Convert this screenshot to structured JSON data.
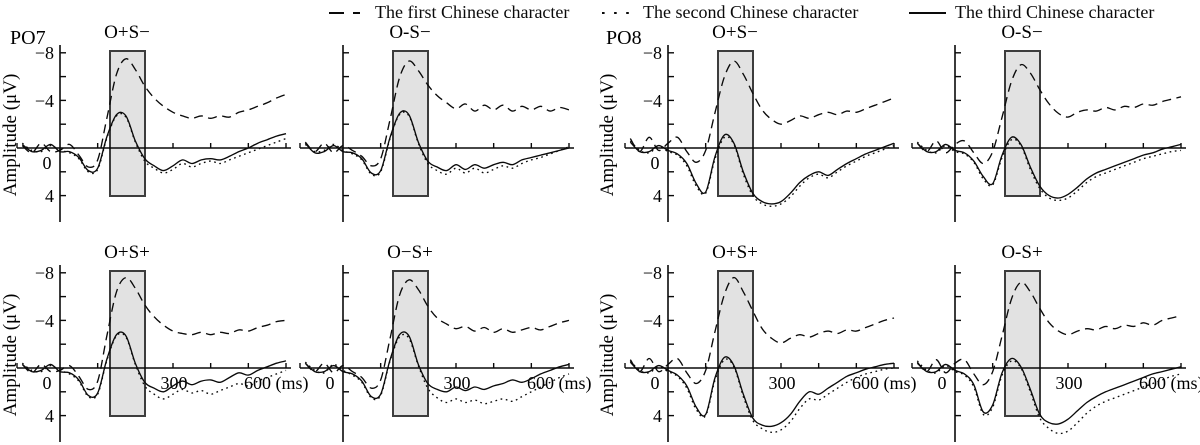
{
  "figure": {
    "electrodes": [
      "PO7",
      "PO8"
    ],
    "ylabel": "Amplitude (μV)",
    "legend": [
      {
        "label": "The first Chinese character",
        "style": "dashed"
      },
      {
        "label": "The second Chinese character",
        "style": "dotted"
      },
      {
        "label": "The third Chinese character",
        "style": "solid"
      }
    ],
    "colors": {
      "line": "#0a0a0a",
      "highlight_fill": "#e2e2e2",
      "highlight_border": "#3d3d3d",
      "background": "#ffffff"
    }
  },
  "chart_data": {
    "type": "line",
    "title": "",
    "xlabel": "(ms)",
    "ylabel": "Amplitude (μV)",
    "x_ms": [
      -100,
      -75,
      -50,
      -25,
      0,
      25,
      50,
      75,
      100,
      125,
      150,
      175,
      200,
      225,
      250,
      275,
      300,
      325,
      350,
      375,
      400,
      425,
      450,
      475,
      500,
      525,
      550,
      575,
      600
    ],
    "x_axis": {
      "range_ms": [
        -114,
        613
      ],
      "ticks_ms": [
        100,
        300,
        400,
        500,
        600
      ],
      "labeled_ticks": [
        "0",
        "300",
        "600 (ms)"
      ]
    },
    "y_axis": {
      "label": "Amplitude (μV)",
      "inverted_negative_up": true,
      "range_uv": [
        -8.6,
        6.2
      ],
      "ticks_uv": [
        -8,
        -6,
        -4,
        -2,
        2,
        4
      ],
      "labeled_ticks": [
        "−8",
        "−4",
        "0",
        "4"
      ]
    },
    "highlight_window": {
      "x_ms": [
        133,
        226
      ],
      "y_uv": [
        -8.2,
        4.0
      ]
    },
    "series_names": [
      "first",
      "second",
      "third"
    ],
    "subplots": [
      {
        "electrode": "PO7",
        "condition": "O+S−",
        "row": 0,
        "col": 0,
        "series": {
          "first": [
            -0.2,
            0.4,
            -0.4,
            0.3,
            0.2,
            -0.3,
            0.6,
            1.6,
            1.0,
            -2.6,
            -6.2,
            -7.5,
            -6.6,
            -5.2,
            -4.2,
            -3.5,
            -3.0,
            -2.7,
            -2.5,
            -2.7,
            -2.5,
            -2.7,
            -2.6,
            -3.0,
            -3.2,
            -3.5,
            -3.8,
            -4.2,
            -4.5
          ],
          "second": [
            -0.4,
            0.2,
            0.3,
            -0.2,
            0.2,
            0.4,
            0.9,
            2.0,
            1.8,
            -0.9,
            -2.7,
            -2.6,
            -0.5,
            1.1,
            1.7,
            2.1,
            1.8,
            1.3,
            1.6,
            1.3,
            1.1,
            1.3,
            1.0,
            0.7,
            0.4,
            0.1,
            -0.2,
            -0.5,
            -0.8
          ],
          "third": [
            -0.3,
            0.3,
            0.2,
            -0.3,
            0.3,
            0.3,
            0.8,
            1.9,
            1.7,
            -1.0,
            -2.8,
            -2.7,
            -0.6,
            0.9,
            1.5,
            1.9,
            1.5,
            1.0,
            1.3,
            1.0,
            0.9,
            1.0,
            0.7,
            0.3,
            0.0,
            -0.4,
            -0.7,
            -1.0,
            -1.2
          ]
        }
      },
      {
        "electrode": "PO7",
        "condition": "O-S−",
        "row": 0,
        "col": 1,
        "series": {
          "first": [
            -0.5,
            0.3,
            -0.4,
            0.4,
            -0.2,
            0.2,
            0.7,
            1.5,
            0.9,
            -2.4,
            -5.9,
            -7.3,
            -6.5,
            -5.3,
            -4.4,
            -3.8,
            -3.3,
            -3.7,
            -3.1,
            -3.6,
            -3.2,
            -3.6,
            -3.1,
            -3.5,
            -3.2,
            -3.5,
            -3.1,
            -3.4,
            -3.2
          ],
          "second": [
            -0.3,
            0.3,
            0.2,
            -0.3,
            0.2,
            0.5,
            1.0,
            2.2,
            2.0,
            -0.8,
            -2.8,
            -2.7,
            -0.4,
            1.3,
            1.9,
            2.2,
            1.7,
            2.1,
            1.7,
            2.1,
            1.8,
            1.5,
            1.7,
            1.3,
            1.0,
            0.8,
            0.5,
            0.2,
            -0.1
          ],
          "third": [
            -0.4,
            0.4,
            0.3,
            -0.2,
            0.3,
            0.4,
            0.9,
            2.1,
            1.9,
            -0.9,
            -2.9,
            -2.8,
            -0.5,
            1.1,
            1.6,
            1.9,
            1.4,
            1.8,
            1.4,
            1.7,
            1.4,
            1.2,
            1.4,
            1.0,
            0.8,
            0.6,
            0.4,
            0.2,
            0.0
          ]
        }
      },
      {
        "electrode": "PO8",
        "condition": "O+S−",
        "row": 0,
        "col": 2,
        "series": {
          "first": [
            -0.8,
            0.3,
            -0.9,
            0.2,
            -0.4,
            -0.9,
            0.3,
            1.2,
            0.2,
            -3.0,
            -6.0,
            -7.3,
            -6.2,
            -4.6,
            -3.2,
            -2.4,
            -2.0,
            -2.3,
            -2.7,
            -2.5,
            -2.8,
            -3.0,
            -2.8,
            -3.1,
            -3.0,
            -3.3,
            -3.6,
            -3.9,
            -4.2
          ],
          "second": [
            -0.6,
            0.2,
            0.4,
            -0.1,
            0.3,
            0.6,
            1.5,
            3.2,
            3.8,
            0.9,
            -0.9,
            -0.3,
            2.2,
            4.0,
            4.7,
            4.9,
            4.7,
            4.1,
            3.2,
            2.5,
            2.2,
            2.5,
            2.0,
            1.5,
            1.1,
            0.7,
            0.4,
            0.1,
            -0.2
          ],
          "third": [
            -0.5,
            0.3,
            0.3,
            -0.2,
            0.2,
            0.5,
            1.3,
            3.0,
            3.7,
            0.7,
            -1.1,
            -0.4,
            2.0,
            3.8,
            4.5,
            4.7,
            4.5,
            3.8,
            2.9,
            2.3,
            2.0,
            2.3,
            1.8,
            1.3,
            0.9,
            0.5,
            0.2,
            -0.1,
            -0.4
          ]
        }
      },
      {
        "electrode": "PO8",
        "condition": "O-S−",
        "row": 0,
        "col": 3,
        "series": {
          "first": [
            -0.4,
            0.3,
            -0.6,
            0.4,
            -0.3,
            -0.6,
            0.4,
            1.3,
            0.3,
            -2.6,
            -5.6,
            -7.0,
            -6.3,
            -4.9,
            -3.7,
            -2.9,
            -2.6,
            -3.0,
            -3.2,
            -3.1,
            -3.4,
            -3.2,
            -3.5,
            -3.4,
            -3.7,
            -3.6,
            -3.9,
            -4.1,
            -4.3
          ],
          "second": [
            -0.5,
            0.2,
            0.4,
            -0.2,
            0.3,
            0.5,
            1.2,
            2.6,
            3.1,
            0.8,
            -0.7,
            -0.2,
            1.8,
            3.4,
            4.2,
            4.4,
            4.2,
            3.6,
            2.9,
            2.4,
            2.1,
            1.8,
            1.5,
            1.2,
            0.9,
            0.7,
            0.5,
            0.3,
            0.2
          ],
          "third": [
            -0.4,
            0.3,
            0.3,
            -0.3,
            0.2,
            0.4,
            1.1,
            2.4,
            3.0,
            0.6,
            -0.9,
            -0.3,
            1.6,
            3.2,
            4.0,
            4.2,
            3.9,
            3.3,
            2.6,
            2.1,
            1.8,
            1.5,
            1.2,
            0.9,
            0.6,
            0.4,
            0.1,
            -0.1,
            -0.3
          ]
        }
      },
      {
        "electrode": "PO7",
        "condition": "O+S+",
        "row": 1,
        "col": 0,
        "series": {
          "first": [
            -0.3,
            0.4,
            -0.3,
            0.3,
            0.2,
            -0.2,
            0.7,
            1.8,
            1.1,
            -2.8,
            -6.4,
            -7.6,
            -6.7,
            -5.3,
            -4.3,
            -3.6,
            -3.1,
            -2.9,
            -2.8,
            -3.0,
            -2.8,
            -3.0,
            -2.9,
            -3.2,
            -3.1,
            -3.4,
            -3.6,
            -3.9,
            -4.0
          ],
          "second": [
            -0.4,
            0.2,
            0.3,
            -0.2,
            0.2,
            0.5,
            1.1,
            2.4,
            2.2,
            -0.7,
            -2.7,
            -2.6,
            -0.3,
            1.5,
            2.2,
            2.6,
            2.2,
            1.8,
            2.1,
            1.9,
            2.2,
            1.9,
            1.6,
            1.3,
            1.5,
            1.1,
            0.8,
            0.5,
            0.2
          ],
          "third": [
            -0.3,
            0.3,
            0.2,
            -0.3,
            0.3,
            0.4,
            1.0,
            2.3,
            2.1,
            -0.8,
            -2.8,
            -2.7,
            -0.4,
            1.2,
            1.7,
            2.0,
            1.5,
            1.1,
            1.4,
            1.1,
            1.0,
            1.2,
            0.8,
            0.4,
            0.6,
            0.2,
            -0.1,
            -0.4,
            -0.6
          ]
        }
      },
      {
        "electrode": "PO7",
        "condition": "O−S+",
        "row": 1,
        "col": 1,
        "series": {
          "first": [
            -0.4,
            0.3,
            -0.4,
            0.4,
            -0.2,
            0.3,
            0.8,
            1.7,
            1.0,
            -2.5,
            -6.1,
            -7.4,
            -6.6,
            -5.2,
            -4.2,
            -3.7,
            -3.3,
            -3.5,
            -3.1,
            -3.4,
            -3.0,
            -3.3,
            -3.0,
            -3.2,
            -3.4,
            -3.2,
            -3.5,
            -3.8,
            -4.0
          ],
          "second": [
            -0.5,
            0.2,
            0.4,
            -0.3,
            0.2,
            0.6,
            1.2,
            2.5,
            2.3,
            -0.6,
            -2.6,
            -2.5,
            -0.2,
            1.7,
            2.5,
            2.9,
            2.6,
            2.9,
            2.7,
            3.0,
            2.8,
            2.6,
            2.8,
            2.4,
            2.0,
            1.6,
            1.2,
            0.8,
            0.5
          ],
          "third": [
            -0.4,
            0.3,
            0.3,
            -0.2,
            0.3,
            0.5,
            1.1,
            2.4,
            2.2,
            -0.7,
            -2.8,
            -2.7,
            -0.3,
            1.3,
            1.8,
            2.0,
            1.6,
            1.9,
            1.6,
            1.8,
            1.5,
            1.3,
            1.0,
            1.2,
            0.9,
            0.5,
            0.2,
            -0.1,
            -0.3
          ]
        }
      },
      {
        "electrode": "PO8",
        "condition": "O+S+",
        "row": 1,
        "col": 2,
        "series": {
          "first": [
            -0.7,
            0.3,
            -0.8,
            0.3,
            -0.3,
            -0.8,
            0.4,
            1.3,
            0.2,
            -3.1,
            -6.2,
            -7.6,
            -6.4,
            -4.8,
            -3.3,
            -2.5,
            -2.1,
            -2.5,
            -2.8,
            -2.6,
            -2.9,
            -3.1,
            -2.9,
            -3.2,
            -3.1,
            -3.4,
            -3.7,
            -4.0,
            -4.2
          ],
          "second": [
            -0.6,
            0.2,
            0.4,
            -0.1,
            0.3,
            0.7,
            1.7,
            3.5,
            4.0,
            1.0,
            -0.7,
            -0.1,
            2.4,
            4.4,
            5.1,
            5.4,
            5.2,
            4.5,
            3.4,
            2.6,
            2.7,
            2.2,
            1.7,
            1.2,
            0.8,
            0.5,
            0.3,
            0.1,
            0.0
          ],
          "third": [
            -0.5,
            0.3,
            0.3,
            -0.2,
            0.2,
            0.6,
            1.5,
            3.3,
            3.9,
            0.8,
            -0.9,
            -0.2,
            2.2,
            4.2,
            4.8,
            4.9,
            4.6,
            3.9,
            2.8,
            2.0,
            2.2,
            1.7,
            1.2,
            0.7,
            0.4,
            0.1,
            -0.1,
            -0.3,
            -0.4
          ]
        }
      },
      {
        "electrode": "PO8",
        "condition": "O-S+",
        "row": 1,
        "col": 3,
        "series": {
          "first": [
            -0.5,
            0.3,
            -0.7,
            0.4,
            -0.4,
            -0.7,
            0.5,
            1.4,
            0.3,
            -2.7,
            -5.8,
            -7.2,
            -6.4,
            -5.0,
            -3.8,
            -3.1,
            -2.8,
            -3.1,
            -3.3,
            -3.2,
            -3.5,
            -3.3,
            -3.6,
            -3.5,
            -3.8,
            -3.6,
            -4.0,
            -4.2,
            -4.4
          ],
          "second": [
            -0.6,
            0.2,
            0.4,
            -0.2,
            0.3,
            0.6,
            1.6,
            3.9,
            3.3,
            0.6,
            -0.6,
            0.0,
            2.0,
            4.2,
            5.1,
            5.5,
            5.3,
            4.6,
            3.8,
            3.2,
            2.8,
            2.5,
            2.2,
            1.9,
            1.6,
            1.3,
            1.0,
            0.7,
            0.5
          ],
          "third": [
            -0.4,
            0.3,
            0.3,
            -0.3,
            0.2,
            0.5,
            1.4,
            3.7,
            3.1,
            0.4,
            -0.8,
            -0.1,
            1.8,
            3.9,
            4.6,
            4.7,
            4.3,
            3.6,
            2.9,
            2.4,
            2.0,
            1.7,
            1.4,
            1.1,
            0.8,
            0.5,
            0.3,
            0.1,
            -0.1
          ]
        }
      }
    ]
  }
}
